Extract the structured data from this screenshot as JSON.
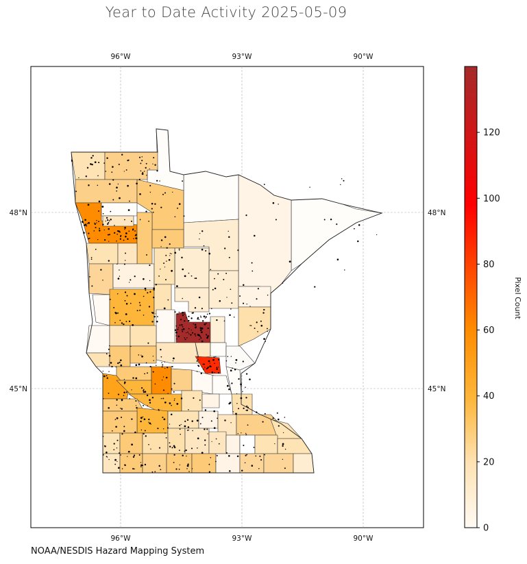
{
  "title": "Year to Date Activity 2025-05-09",
  "credit": "NOAA/NESDIS Hazard Mapping System",
  "map": {
    "projection": "lat-lon",
    "lon_ticks": [
      "96°W",
      "93°W",
      "90°W"
    ],
    "lat_ticks": [
      "48°N",
      "45°N"
    ],
    "gridlines": true,
    "region": "Minnesota counties",
    "fire_detections": "black point markers"
  },
  "colorbar": {
    "label": "Pixel Count",
    "ticks": [
      "0",
      "20",
      "40",
      "60",
      "80",
      "100",
      "120"
    ],
    "range": [
      0,
      140
    ],
    "colors": [
      "#fffaf3",
      "#fee3b4",
      "#fdb63a",
      "#ff8c00",
      "#ff2a00",
      "#a52a2a"
    ]
  },
  "chart_data": {
    "type": "choropleth",
    "title": "Year to Date Activity 2025-05-09",
    "colorbar_label": "Pixel Count",
    "value_range": [
      0,
      140
    ],
    "x_ticks": [
      "96°W",
      "93°W",
      "90°W"
    ],
    "y_ticks": [
      "48°N",
      "45°N"
    ]
  }
}
